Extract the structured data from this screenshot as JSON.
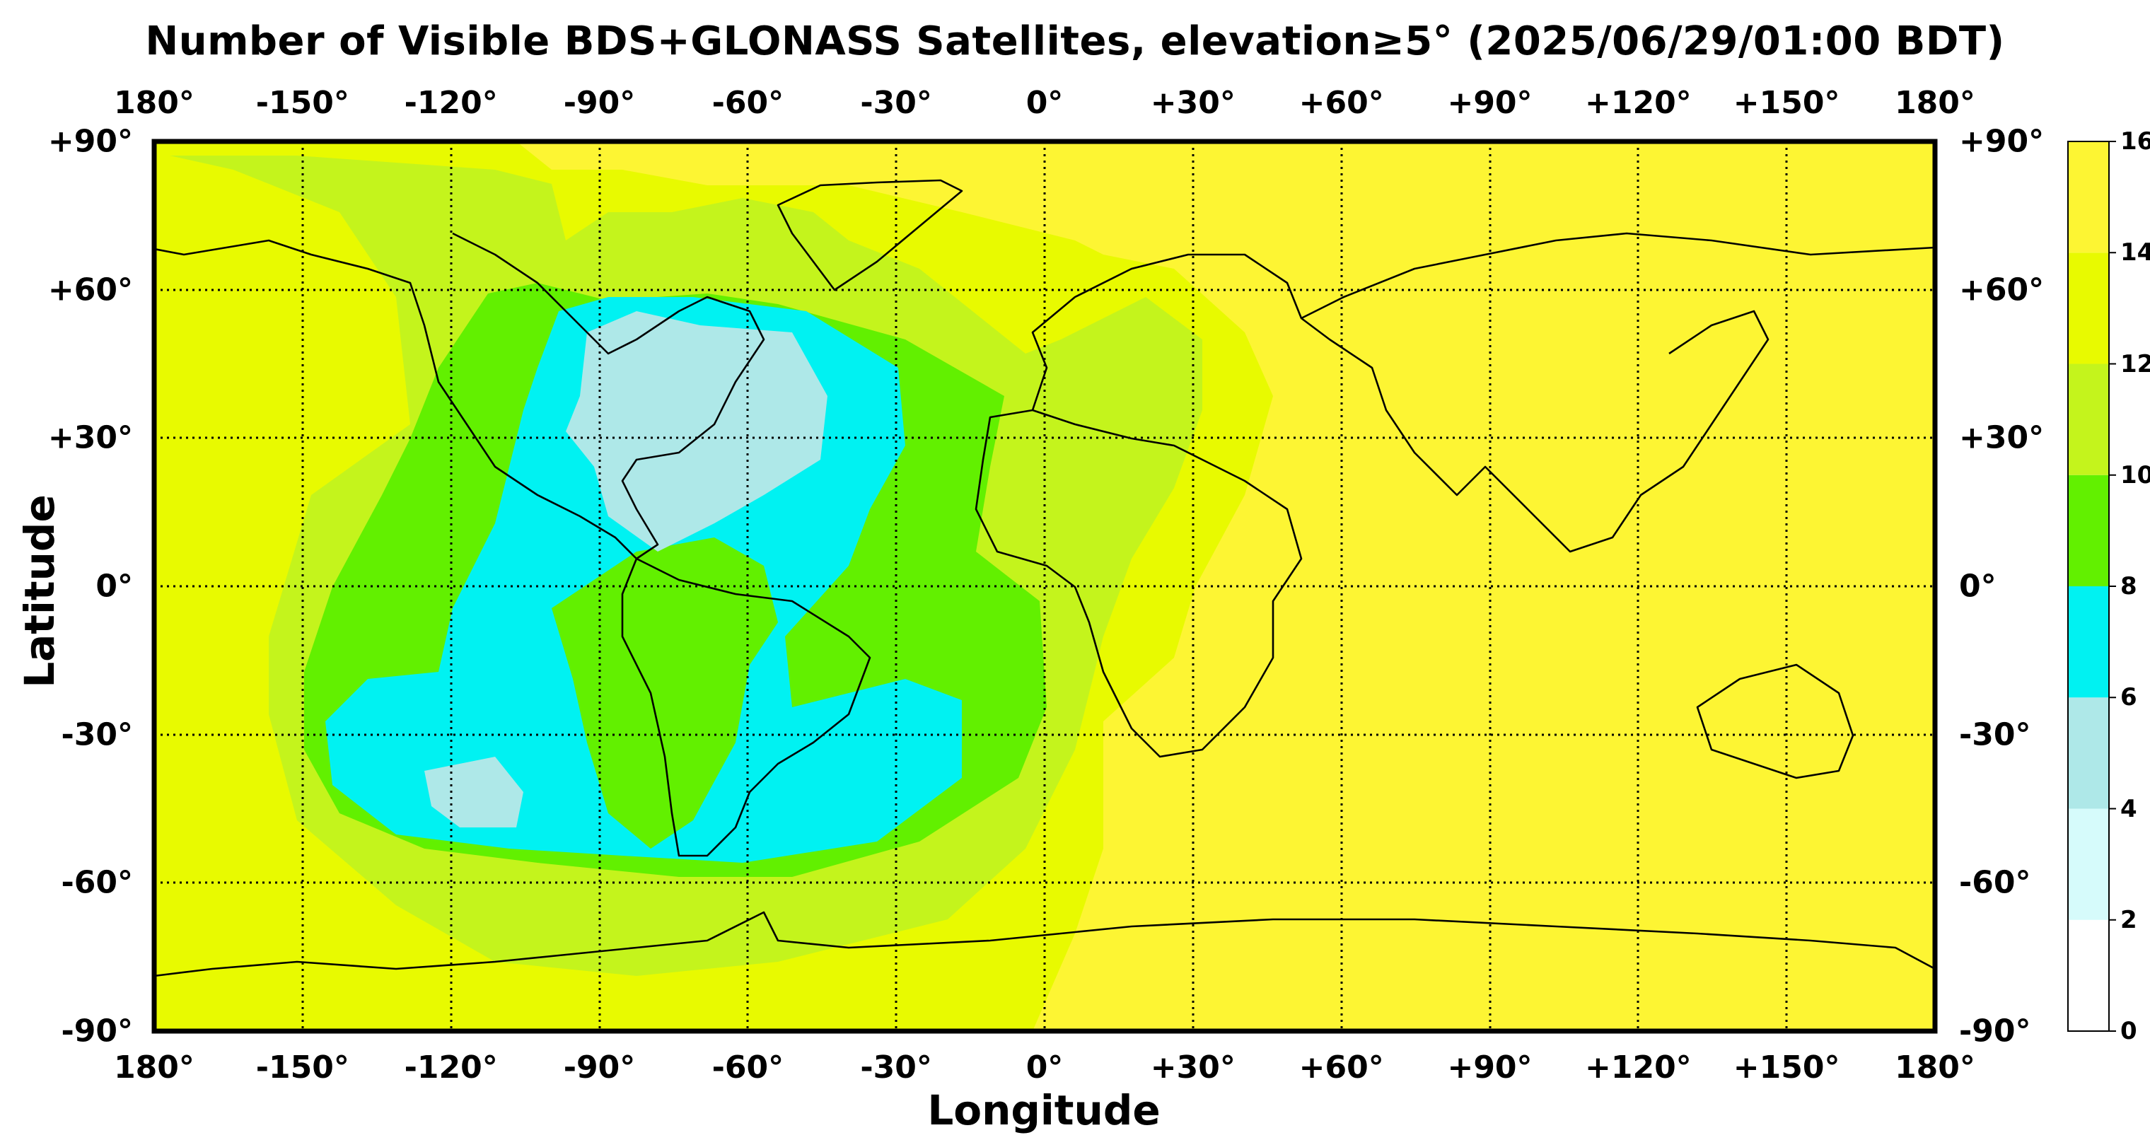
{
  "chart_data": {
    "type": "heatmap",
    "title": "Number of Visible BDS+GLONASS Satellites, elevation≥5° (2025/06/29/01:00 BDT)",
    "xlabel": "Longitude",
    "ylabel": "Latitude",
    "xlim": [
      -180,
      180
    ],
    "ylim": [
      -90,
      90
    ],
    "x_ticks": [
      -180,
      -150,
      -120,
      -90,
      -60,
      -30,
      0,
      30,
      60,
      90,
      120,
      150,
      180
    ],
    "x_tick_labels": [
      "180°",
      "-150°",
      "-120°",
      "-90°",
      "-60°",
      "-30°",
      "0°",
      "+30°",
      "+60°",
      "+90°",
      "+120°",
      "+150°",
      "180°"
    ],
    "y_ticks": [
      90,
      60,
      30,
      0,
      -30,
      -60,
      -90
    ],
    "y_tick_labels": [
      "+90°",
      "+60°",
      "+30°",
      "0°",
      "-30°",
      "-60°",
      "-90°"
    ],
    "grid": true,
    "colorbar": {
      "levels": [
        0,
        2,
        4,
        6,
        8,
        10,
        12,
        14,
        16
      ],
      "tick_labels": [
        "0",
        "2",
        "4",
        "6",
        "8",
        "10",
        "12",
        "14",
        "16"
      ],
      "colors": [
        "#ffffff",
        "#d6fbfb",
        "#aee8e8",
        "#00f2f2",
        "#62f000",
        "#c4f41c",
        "#e8fa00",
        "#fdf533"
      ]
    },
    "regions": [
      {
        "description": "global background (Eastern Hemisphere, Arctic)",
        "value_range": [
          14,
          16
        ]
      },
      {
        "description": "western hemisphere outer zone",
        "value_range": [
          12,
          14
        ]
      },
      {
        "description": "Atlantic / Pacific ring",
        "value_range": [
          10,
          12
        ]
      },
      {
        "description": "Americas ring",
        "value_range": [
          8,
          10
        ]
      },
      {
        "description": "North America, South Pacific, South Atlantic",
        "value_range": [
          6,
          8
        ]
      },
      {
        "description": "central/eastern North America core",
        "value_range": [
          4,
          6
        ]
      },
      {
        "description": "South Pacific core",
        "value_range": [
          4,
          6
        ]
      }
    ]
  }
}
